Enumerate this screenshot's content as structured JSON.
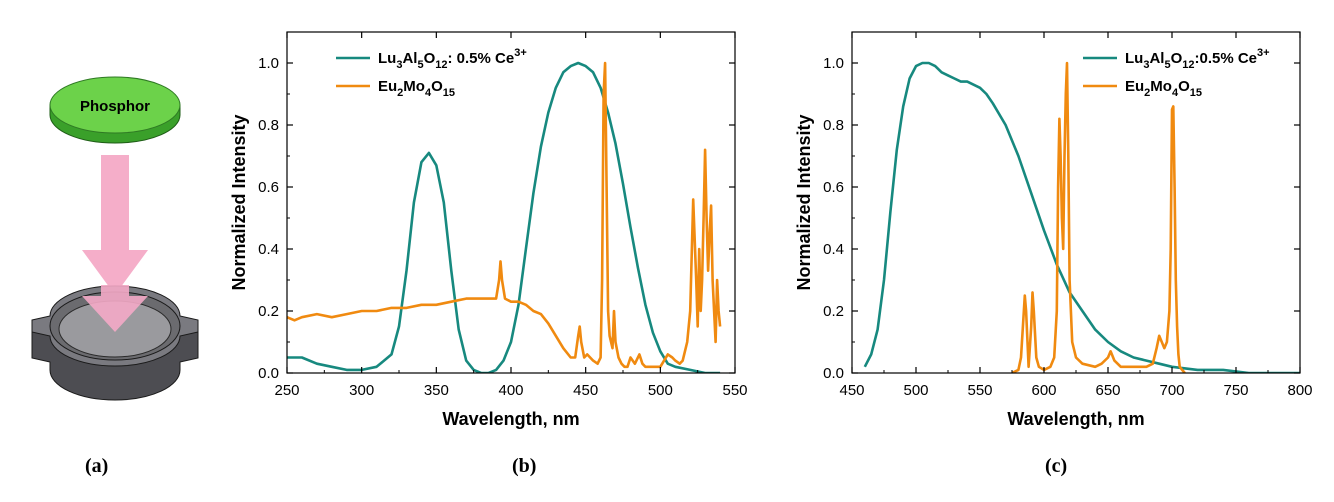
{
  "figure": {
    "panel_labels": [
      "(a)",
      "(b)",
      "(c)"
    ],
    "phosphor_label": "Phosphor"
  },
  "colors": {
    "teal": "#17897f",
    "orange": "#f08a10",
    "disk_green": "#6cd24a",
    "holder_gray": "#6b6b6f",
    "arrow_pink": "#f4aac6"
  },
  "chart_data": [
    {
      "type": "line",
      "xlabel": "Wavelength, nm",
      "ylabel": "Normalized Intensity",
      "xlim": [
        250,
        550
      ],
      "ylim": [
        0,
        1.1
      ],
      "xticks": [
        "250",
        "300",
        "350",
        "400",
        "450",
        "500",
        "550"
      ],
      "yticks": [
        "0.0",
        "0.2",
        "0.4",
        "0.6",
        "0.8",
        "1.0"
      ],
      "legend": {
        "placement": "top-left",
        "entries": [
          {
            "main": "Lu",
            "sub1": "3",
            "mid1": "Al",
            "sub2": "5",
            "mid2": "O",
            "sub3": "12",
            "mid3": ": 0.5% Ce",
            "sup": "3+"
          },
          {
            "main": "Eu",
            "sub1": "2",
            "mid1": "Mo",
            "sub2": "4",
            "mid2": "O",
            "sub3": "15",
            "mid3": "",
            "sup": ""
          }
        ]
      },
      "series": [
        {
          "name": "Lu3Al5O12: 0.5% Ce3+",
          "color": "#17897f",
          "x": [
            250,
            260,
            270,
            280,
            290,
            300,
            310,
            320,
            325,
            330,
            335,
            340,
            345,
            350,
            355,
            360,
            365,
            370,
            375,
            380,
            385,
            390,
            395,
            400,
            405,
            410,
            415,
            420,
            425,
            430,
            435,
            440,
            445,
            450,
            455,
            460,
            465,
            470,
            475,
            480,
            485,
            490,
            495,
            500,
            505,
            510,
            520,
            530,
            540
          ],
          "y": [
            0.05,
            0.05,
            0.03,
            0.02,
            0.01,
            0.01,
            0.02,
            0.06,
            0.15,
            0.33,
            0.55,
            0.68,
            0.71,
            0.67,
            0.55,
            0.33,
            0.14,
            0.04,
            0.01,
            0.0,
            0.0,
            0.01,
            0.04,
            0.1,
            0.22,
            0.4,
            0.58,
            0.73,
            0.84,
            0.92,
            0.97,
            0.99,
            1.0,
            0.99,
            0.97,
            0.92,
            0.84,
            0.74,
            0.61,
            0.47,
            0.34,
            0.22,
            0.13,
            0.07,
            0.03,
            0.02,
            0.01,
            0.0,
            0.0
          ]
        },
        {
          "name": "Eu2Mo4O15",
          "color": "#f08a10",
          "x": [
            250,
            255,
            260,
            270,
            280,
            290,
            300,
            310,
            320,
            330,
            340,
            350,
            360,
            370,
            375,
            380,
            385,
            390,
            392,
            393,
            394,
            396,
            400,
            405,
            410,
            415,
            420,
            425,
            430,
            435,
            440,
            443,
            445,
            446,
            447,
            449,
            451,
            455,
            458,
            460,
            461,
            462,
            463,
            464,
            465,
            466,
            468,
            469,
            470,
            472,
            474,
            476,
            478,
            480,
            483,
            486,
            488,
            490,
            495,
            500,
            505,
            508,
            510,
            513,
            515,
            518,
            520,
            522,
            524,
            525,
            526,
            527,
            528,
            529,
            530,
            531,
            532,
            533,
            534,
            535,
            536,
            537,
            538,
            539,
            540
          ],
          "y": [
            0.18,
            0.17,
            0.18,
            0.19,
            0.18,
            0.19,
            0.2,
            0.2,
            0.21,
            0.21,
            0.22,
            0.22,
            0.23,
            0.24,
            0.24,
            0.24,
            0.24,
            0.24,
            0.3,
            0.36,
            0.3,
            0.24,
            0.23,
            0.23,
            0.22,
            0.2,
            0.19,
            0.16,
            0.12,
            0.08,
            0.05,
            0.05,
            0.12,
            0.15,
            0.1,
            0.05,
            0.06,
            0.04,
            0.03,
            0.05,
            0.3,
            0.9,
            1.0,
            0.6,
            0.2,
            0.12,
            0.08,
            0.2,
            0.1,
            0.05,
            0.03,
            0.02,
            0.02,
            0.05,
            0.03,
            0.06,
            0.03,
            0.02,
            0.02,
            0.02,
            0.06,
            0.05,
            0.04,
            0.03,
            0.04,
            0.1,
            0.2,
            0.56,
            0.3,
            0.15,
            0.4,
            0.2,
            0.3,
            0.5,
            0.72,
            0.5,
            0.33,
            0.45,
            0.54,
            0.3,
            0.2,
            0.1,
            0.3,
            0.2,
            0.15
          ]
        }
      ]
    },
    {
      "type": "line",
      "xlabel": "Wavelength, nm",
      "ylabel": "Normalized Intensity",
      "xlim": [
        450,
        800
      ],
      "ylim": [
        0,
        1.1
      ],
      "xticks": [
        "450",
        "500",
        "550",
        "600",
        "650",
        "700",
        "750",
        "800"
      ],
      "yticks": [
        "0.0",
        "0.2",
        "0.4",
        "0.6",
        "0.8",
        "1.0"
      ],
      "legend": {
        "placement": "top-right",
        "entries": [
          {
            "main": "Lu",
            "sub1": "3",
            "mid1": "Al",
            "sub2": "5",
            "mid2": "O",
            "sub3": "12",
            "mid3": ":0.5% Ce",
            "sup": "3+"
          },
          {
            "main": "Eu",
            "sub1": "2",
            "mid1": "Mo",
            "sub2": "4",
            "mid2": "O",
            "sub3": "15",
            "mid3": "",
            "sup": ""
          }
        ]
      },
      "series": [
        {
          "name": "Lu3Al5O12:0.5% Ce3+",
          "color": "#17897f",
          "x": [
            460,
            465,
            470,
            475,
            480,
            485,
            490,
            495,
            500,
            505,
            510,
            515,
            520,
            525,
            530,
            535,
            540,
            545,
            550,
            555,
            560,
            570,
            580,
            590,
            600,
            610,
            620,
            630,
            640,
            650,
            660,
            670,
            680,
            690,
            700,
            720,
            740,
            760,
            780,
            800
          ],
          "y": [
            0.02,
            0.06,
            0.14,
            0.3,
            0.52,
            0.72,
            0.86,
            0.95,
            0.99,
            1.0,
            1.0,
            0.99,
            0.97,
            0.96,
            0.95,
            0.94,
            0.94,
            0.93,
            0.92,
            0.9,
            0.87,
            0.8,
            0.7,
            0.58,
            0.46,
            0.35,
            0.26,
            0.2,
            0.14,
            0.1,
            0.07,
            0.05,
            0.04,
            0.03,
            0.02,
            0.01,
            0.01,
            0.0,
            0.0,
            0.0
          ]
        },
        {
          "name": "Eu2Mo4O15",
          "color": "#f08a10",
          "x": [
            575,
            580,
            582,
            585,
            586,
            588,
            590,
            591,
            592,
            594,
            596,
            600,
            605,
            608,
            610,
            611,
            612,
            613,
            614,
            615,
            616,
            617,
            618,
            619,
            620,
            622,
            625,
            630,
            640,
            645,
            650,
            652,
            655,
            660,
            670,
            680,
            685,
            688,
            690,
            692,
            694,
            696,
            698,
            699,
            700,
            701,
            702,
            703,
            704,
            705,
            706,
            708,
            710
          ],
          "y": [
            0.0,
            0.01,
            0.05,
            0.25,
            0.2,
            0.02,
            0.15,
            0.26,
            0.2,
            0.05,
            0.02,
            0.01,
            0.02,
            0.05,
            0.2,
            0.6,
            0.82,
            0.7,
            0.5,
            0.4,
            0.7,
            0.9,
            1.0,
            0.7,
            0.3,
            0.1,
            0.05,
            0.03,
            0.02,
            0.03,
            0.05,
            0.07,
            0.04,
            0.02,
            0.02,
            0.02,
            0.03,
            0.08,
            0.12,
            0.1,
            0.08,
            0.1,
            0.2,
            0.4,
            0.85,
            0.86,
            0.6,
            0.3,
            0.15,
            0.06,
            0.02,
            0.01,
            0.0
          ]
        }
      ]
    }
  ]
}
